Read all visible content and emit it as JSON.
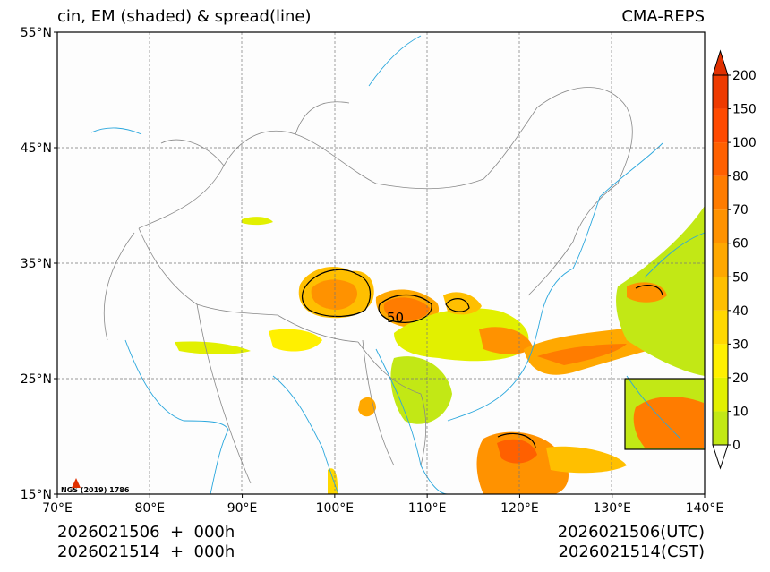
{
  "title_left": "cin, EM (shaded) & spread(line)",
  "title_right": "CMA-REPS",
  "lat_ticks": [
    {
      "label": "55°N",
      "lat": 55
    },
    {
      "label": "45°N",
      "lat": 45
    },
    {
      "label": "35°N",
      "lat": 35
    },
    {
      "label": "25°N",
      "lat": 25
    },
    {
      "label": "15°N",
      "lat": 15
    }
  ],
  "lon_ticks": [
    {
      "label": "70°E",
      "lon": 70
    },
    {
      "label": "80°E",
      "lon": 80
    },
    {
      "label": "90°E",
      "lon": 90
    },
    {
      "label": "100°E",
      "lon": 100
    },
    {
      "label": "110°E",
      "lon": 110
    },
    {
      "label": "120°E",
      "lon": 120
    },
    {
      "label": "130°E",
      "lon": 130
    },
    {
      "label": "140°E",
      "lon": 140
    }
  ],
  "colorbar": {
    "levels": [
      "0",
      "10",
      "20",
      "30",
      "40",
      "50",
      "60",
      "70",
      "80",
      "100",
      "150",
      "200"
    ],
    "colors": [
      "#c2e815",
      "#e2f000",
      "#fff000",
      "#ffd800",
      "#ffbf00",
      "#ffa800",
      "#ff9200",
      "#ff7c00",
      "#ff6000",
      "#ff4a00",
      "#ee3a00"
    ],
    "over_color": "#e03000",
    "under_color": "#ffffff"
  },
  "contour_label": "50",
  "copyright": "NGS (2019) 1786",
  "init_line1": "2026021506  +  000h",
  "init_line2": "2026021514  +  000h",
  "valid_utc": "2026021506(UTC)",
  "valid_cst": "2026021514(CST)",
  "colors": {
    "coast": "#2aa7dd",
    "border": "#888888",
    "grid": "#777777"
  }
}
